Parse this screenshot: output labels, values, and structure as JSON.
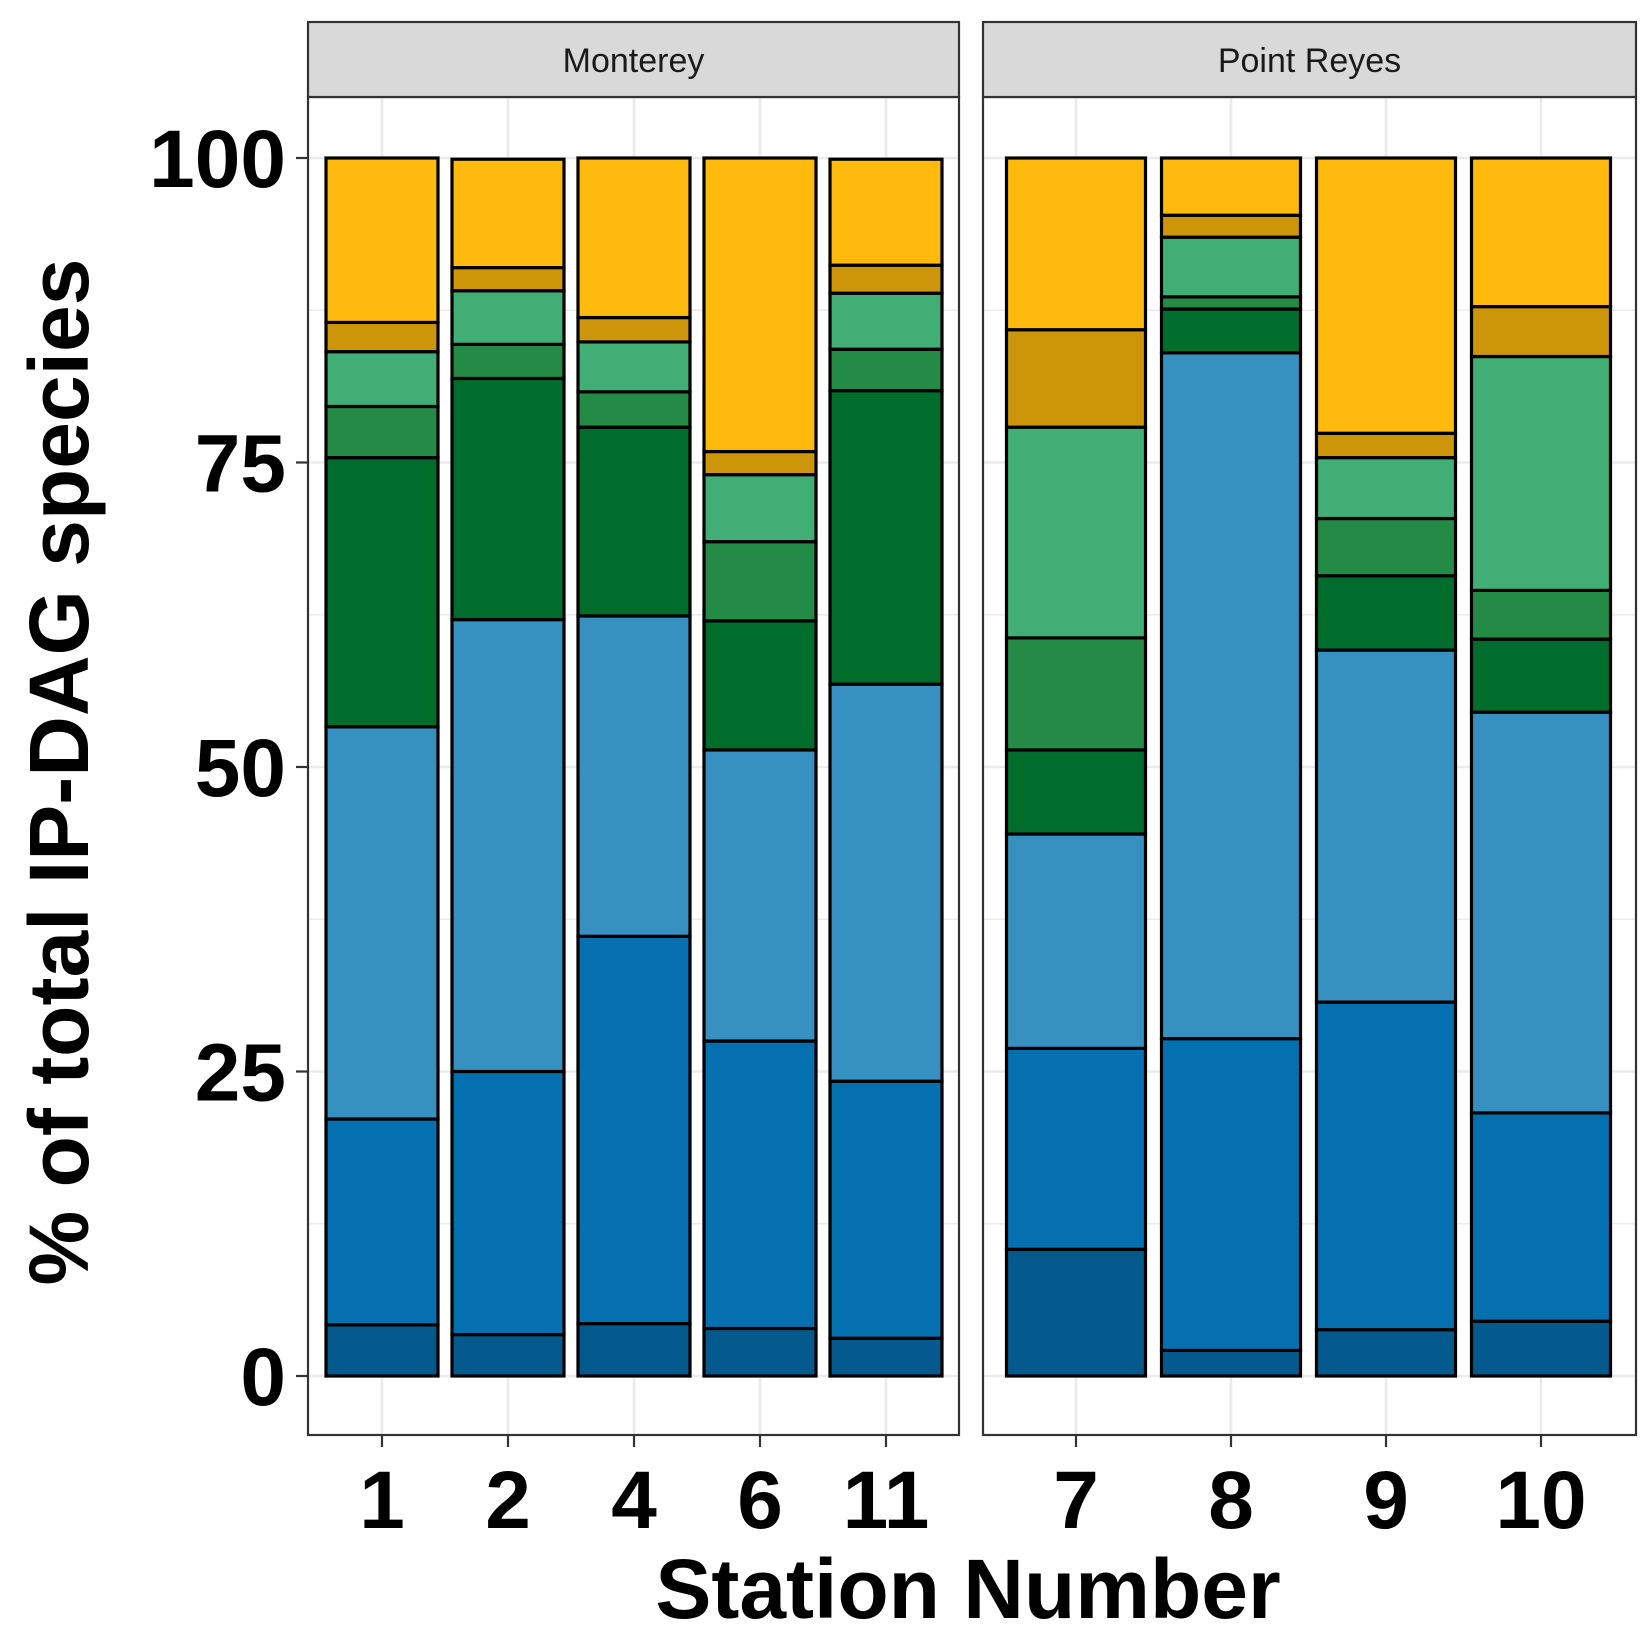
{
  "chart_data": {
    "type": "bar",
    "stacked": true,
    "xlabel": "Station Number",
    "ylabel": "% of total IP-DAG species",
    "ylim": [
      -5,
      110
    ],
    "yticks": [
      0,
      25,
      50,
      75,
      100
    ],
    "grid": true,
    "segment_colors": [
      "#045a8d",
      "#0570b0",
      "#3690c0",
      "#006d2c",
      "#238b45",
      "#41ae76",
      "#cc950a",
      "#ffba0d"
    ],
    "panels": [
      {
        "name": "Monterey",
        "categories": [
          "1",
          "2",
          "4",
          "6",
          "11"
        ],
        "stacks": [
          [
            4.2,
            16.9,
            32.2,
            22.1,
            4.2,
            4.5,
            2.4,
            13.5
          ],
          [
            3.4,
            21.6,
            37.1,
            19.8,
            2.8,
            4.4,
            1.9,
            8.9
          ],
          [
            4.3,
            31.8,
            26.3,
            15.5,
            2.9,
            4.1,
            2.0,
            13.1
          ],
          [
            3.9,
            23.6,
            23.9,
            10.6,
            6.5,
            5.5,
            1.9,
            24.1
          ],
          [
            3.1,
            21.1,
            32.6,
            24.1,
            3.4,
            4.6,
            2.3,
            8.7
          ]
        ]
      },
      {
        "name": "Point Reyes",
        "categories": [
          "7",
          "8",
          "9",
          "10"
        ],
        "stacks": [
          [
            10.4,
            16.5,
            17.6,
            6.9,
            9.2,
            17.3,
            8.0,
            14.1
          ],
          [
            2.1,
            25.6,
            56.3,
            3.6,
            1.0,
            4.9,
            1.8,
            4.7
          ],
          [
            3.8,
            26.9,
            28.9,
            6.1,
            4.7,
            5.0,
            2.0,
            22.6
          ],
          [
            4.5,
            17.1,
            32.9,
            6.0,
            4.0,
            19.2,
            4.1,
            12.2
          ]
        ]
      }
    ]
  }
}
